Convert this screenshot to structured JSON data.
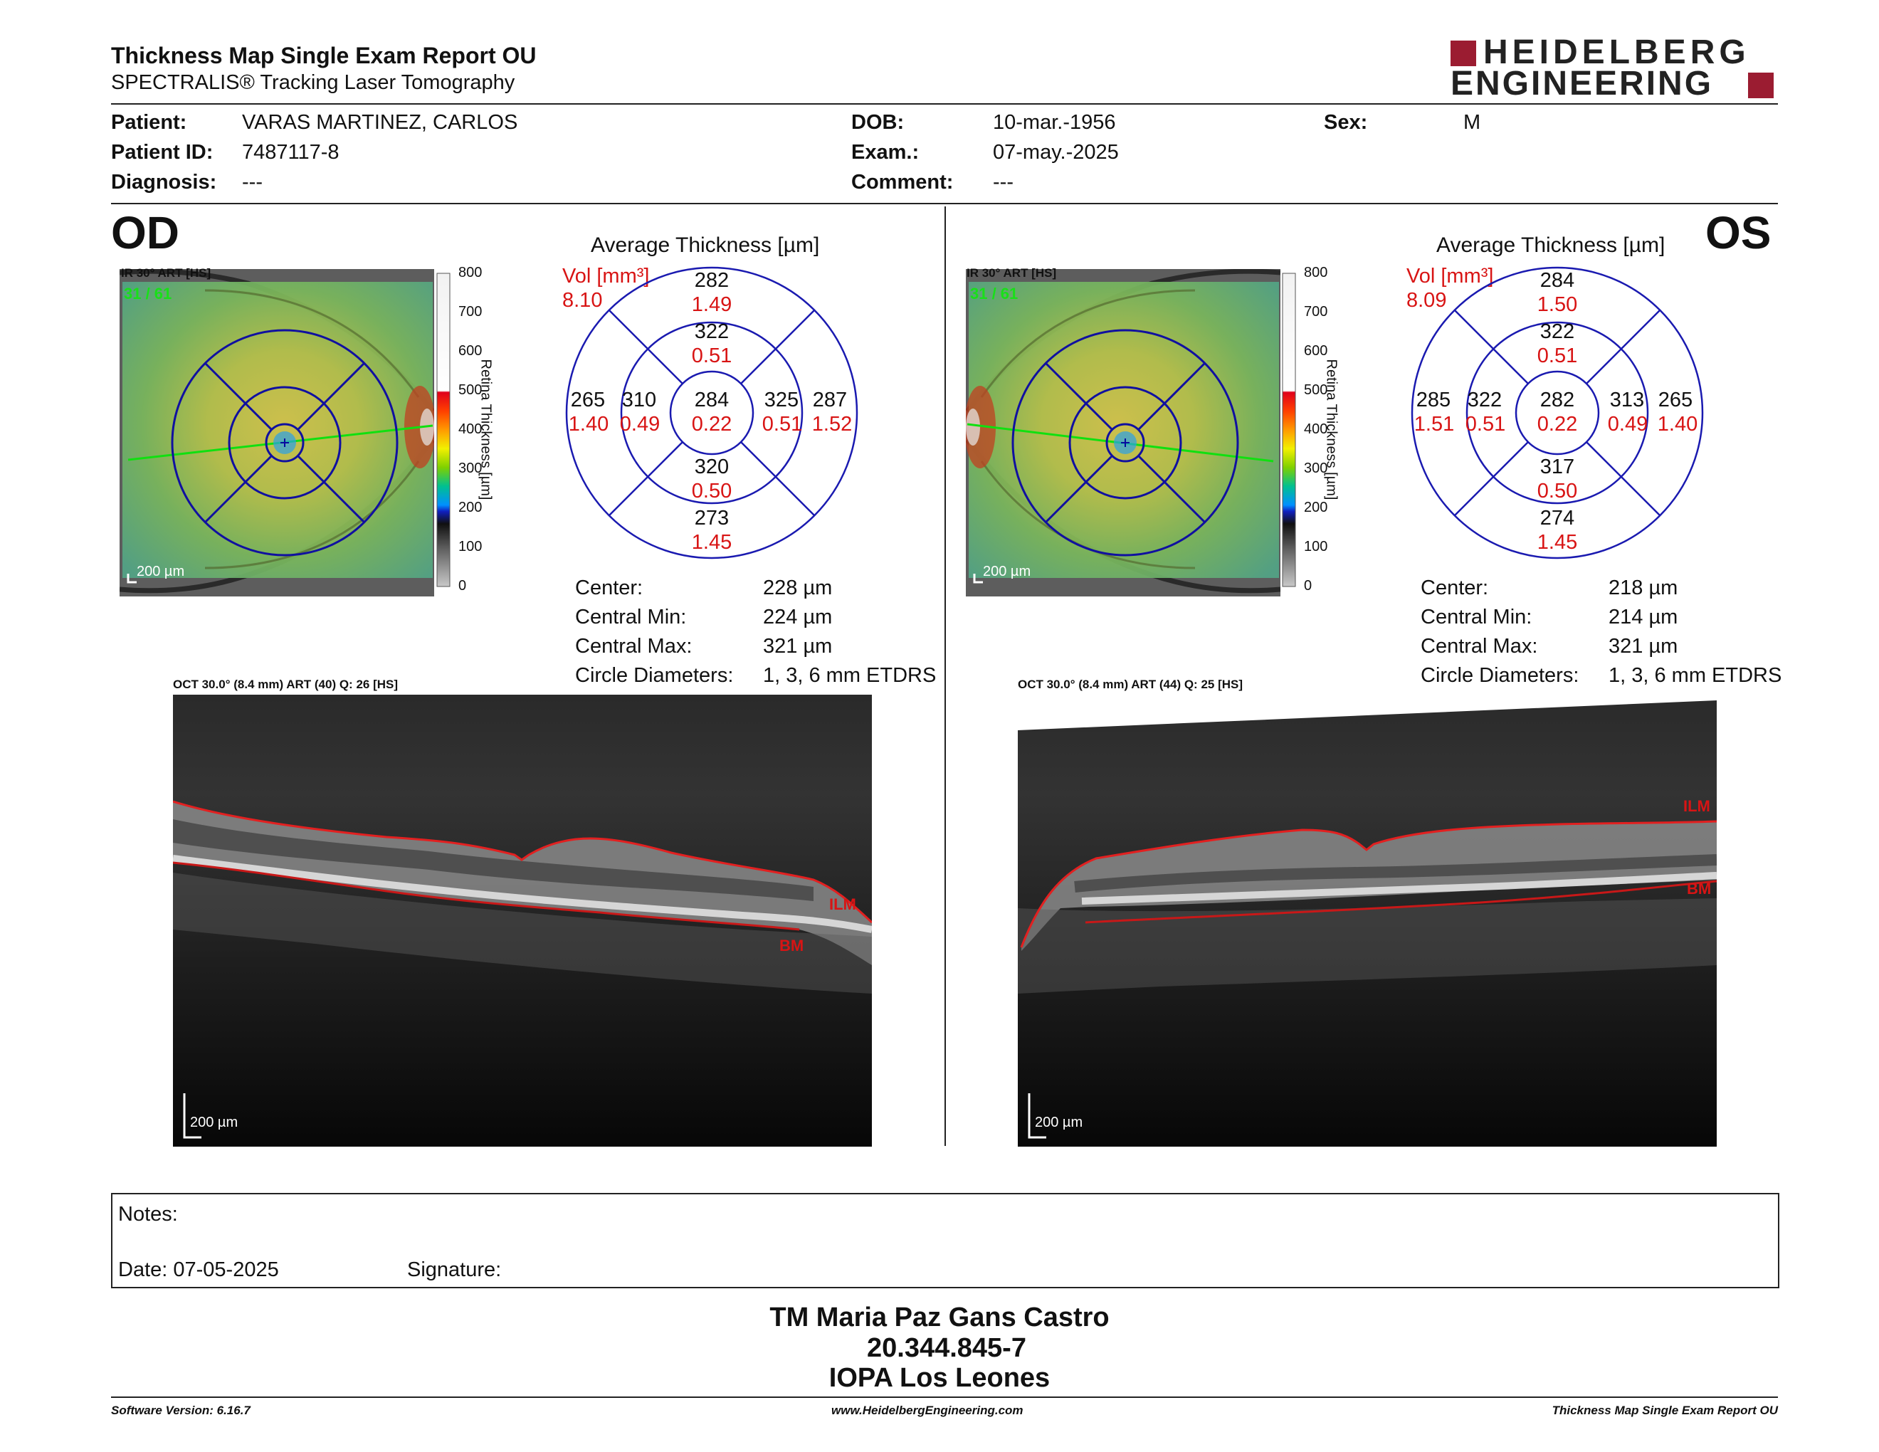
{
  "report": {
    "title": "Thickness Map Single Exam Report OU",
    "subtitle": "SPECTRALIS® Tracking Laser Tomography",
    "logo_line1": "HEIDELBERG",
    "logo_line2": "ENGINEERING",
    "logo_color": "#9b1c31"
  },
  "patient": {
    "name_label": "Patient:",
    "name": "VARAS MARTINEZ, CARLOS",
    "id_label": "Patient ID:",
    "id": "7487117-8",
    "diagnosis_label": "Diagnosis:",
    "diagnosis": "---",
    "dob_label": "DOB:",
    "dob": "10-mar.-1956",
    "exam_label": "Exam.:",
    "exam": "07-may.-2025",
    "comment_label": "Comment:",
    "comment": "---",
    "sex_label": "Sex:",
    "sex": "M"
  },
  "scale": {
    "ticks": [
      "800",
      "700",
      "600",
      "500",
      "400",
      "300",
      "200",
      "100",
      "0"
    ],
    "label": "Retina Thickness [µm]"
  },
  "od": {
    "eye": "OD",
    "ir_label": "IR 30° ART [HS]",
    "frame": "31 / 61",
    "scalebar": "200 µm",
    "avg_title": "Average Thickness [µm]",
    "vol_label": "Vol [mm³]",
    "vol_value": "8.10",
    "sectors": {
      "outer_top": {
        "t": "282",
        "v": "1.49"
      },
      "inner_top": {
        "t": "322",
        "v": "0.51"
      },
      "outer_left": {
        "t": "265",
        "v": "1.40"
      },
      "inner_left": {
        "t": "310",
        "v": "0.49"
      },
      "center": {
        "t": "284",
        "v": "0.22"
      },
      "inner_right": {
        "t": "325",
        "v": "0.51"
      },
      "outer_right": {
        "t": "287",
        "v": "1.52"
      },
      "inner_bottom": {
        "t": "320",
        "v": "0.50"
      },
      "outer_bottom": {
        "t": "273",
        "v": "1.45"
      }
    },
    "stats": [
      {
        "label": "Center:",
        "value": "228 µm"
      },
      {
        "label": "Central Min:",
        "value": "224 µm"
      },
      {
        "label": "Central Max:",
        "value": "321 µm"
      },
      {
        "label": "Circle Diameters:",
        "value": "1, 3, 6 mm ETDRS"
      }
    ],
    "oct_label": "OCT 30.0° (8.4 mm) ART (40) Q: 26 [HS]",
    "ilm": "ILM",
    "bm": "BM",
    "oct_scalebar": "200 µm"
  },
  "os": {
    "eye": "OS",
    "ir_label": "IR 30° ART [HS]",
    "frame": "31 / 61",
    "scalebar": "200 µm",
    "avg_title": "Average Thickness [µm]",
    "vol_label": "Vol [mm³]",
    "vol_value": "8.09",
    "sectors": {
      "outer_top": {
        "t": "284",
        "v": "1.50"
      },
      "inner_top": {
        "t": "322",
        "v": "0.51"
      },
      "outer_left": {
        "t": "285",
        "v": "1.51"
      },
      "inner_left": {
        "t": "322",
        "v": "0.51"
      },
      "center": {
        "t": "282",
        "v": "0.22"
      },
      "inner_right": {
        "t": "313",
        "v": "0.49"
      },
      "outer_right": {
        "t": "265",
        "v": "1.40"
      },
      "inner_bottom": {
        "t": "317",
        "v": "0.50"
      },
      "outer_bottom": {
        "t": "274",
        "v": "1.45"
      }
    },
    "stats": [
      {
        "label": "Center:",
        "value": "218 µm"
      },
      {
        "label": "Central Min:",
        "value": "214 µm"
      },
      {
        "label": "Central Max:",
        "value": "321 µm"
      },
      {
        "label": "Circle Diameters:",
        "value": "1, 3, 6 mm ETDRS"
      }
    ],
    "oct_label": "OCT 30.0° (8.4 mm) ART (44) Q: 25 [HS]",
    "ilm": "ILM",
    "bm": "BM",
    "oct_scalebar": "200 µm"
  },
  "notes": {
    "notes_label": "Notes:",
    "date_label": "Date: 07-05-2025",
    "signature_label": "Signature:"
  },
  "signer": {
    "name": "TM Maria Paz Gans Castro",
    "rut": "20.344.845-7",
    "institution": "IOPA Los Leones"
  },
  "footer": {
    "software": "Software Version: 6.16.7",
    "website": "www.HeidelbergEngineering.com",
    "report": "Thickness Map Single Exam Report OU"
  }
}
